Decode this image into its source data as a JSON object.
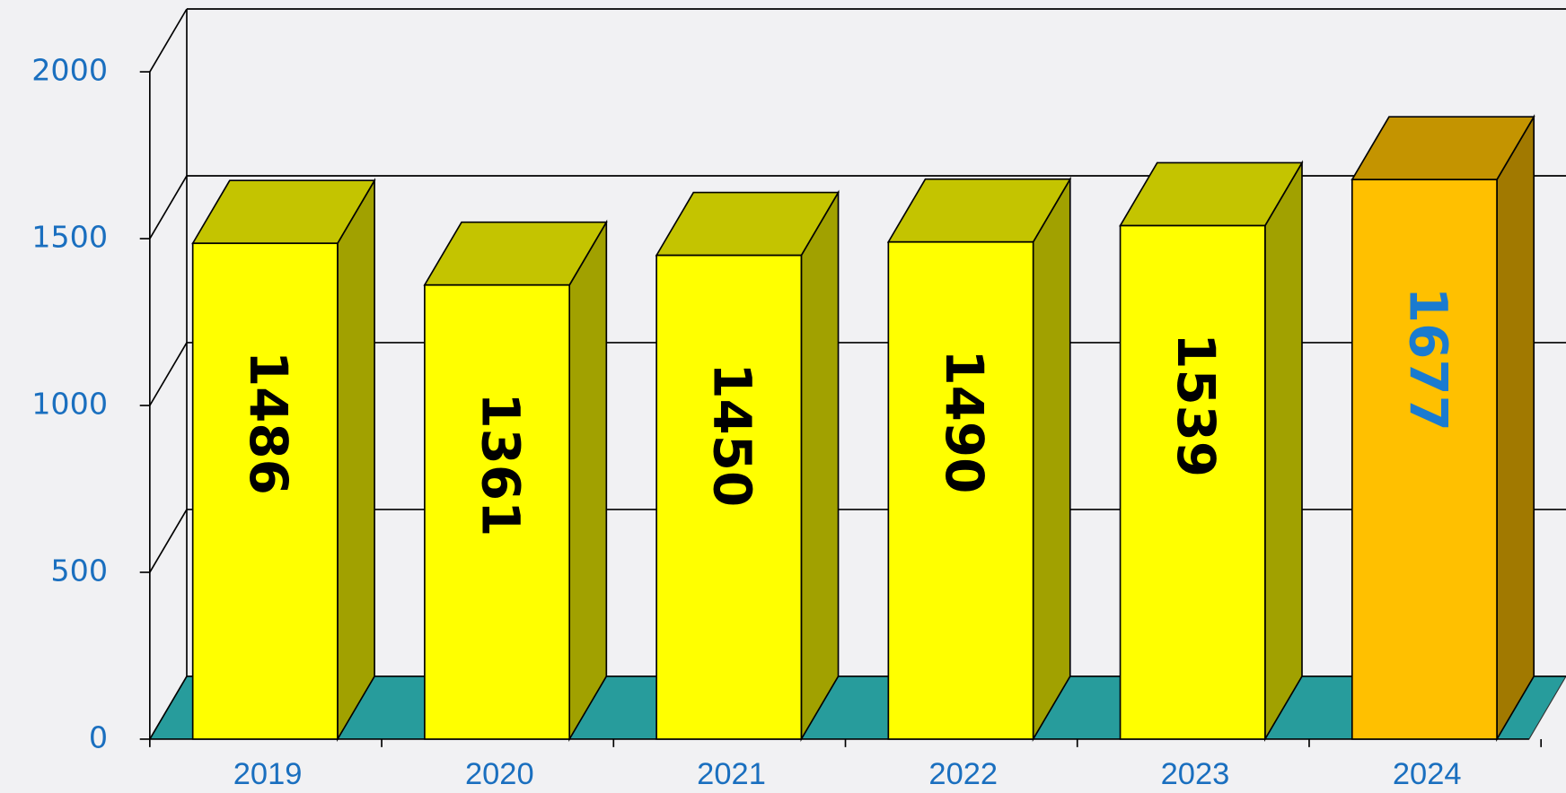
{
  "chart_data": {
    "type": "bar3d",
    "categories": [
      "2019",
      "2020",
      "2021",
      "2022",
      "2023",
      "2024"
    ],
    "values": [
      1486,
      1361,
      1450,
      1490,
      1539,
      1677
    ],
    "colors": [
      "#ffff00",
      "#ffff00",
      "#ffff00",
      "#ffff00",
      "#ffff00",
      "#ffc000"
    ],
    "label_colors": [
      "#000000",
      "#000000",
      "#000000",
      "#000000",
      "#000000",
      "#1a7bd0"
    ],
    "floor_color": "#279c9c",
    "ylim": [
      0,
      2000
    ],
    "yticks": [
      0,
      500,
      1000,
      1500,
      2000
    ],
    "grid": true
  }
}
